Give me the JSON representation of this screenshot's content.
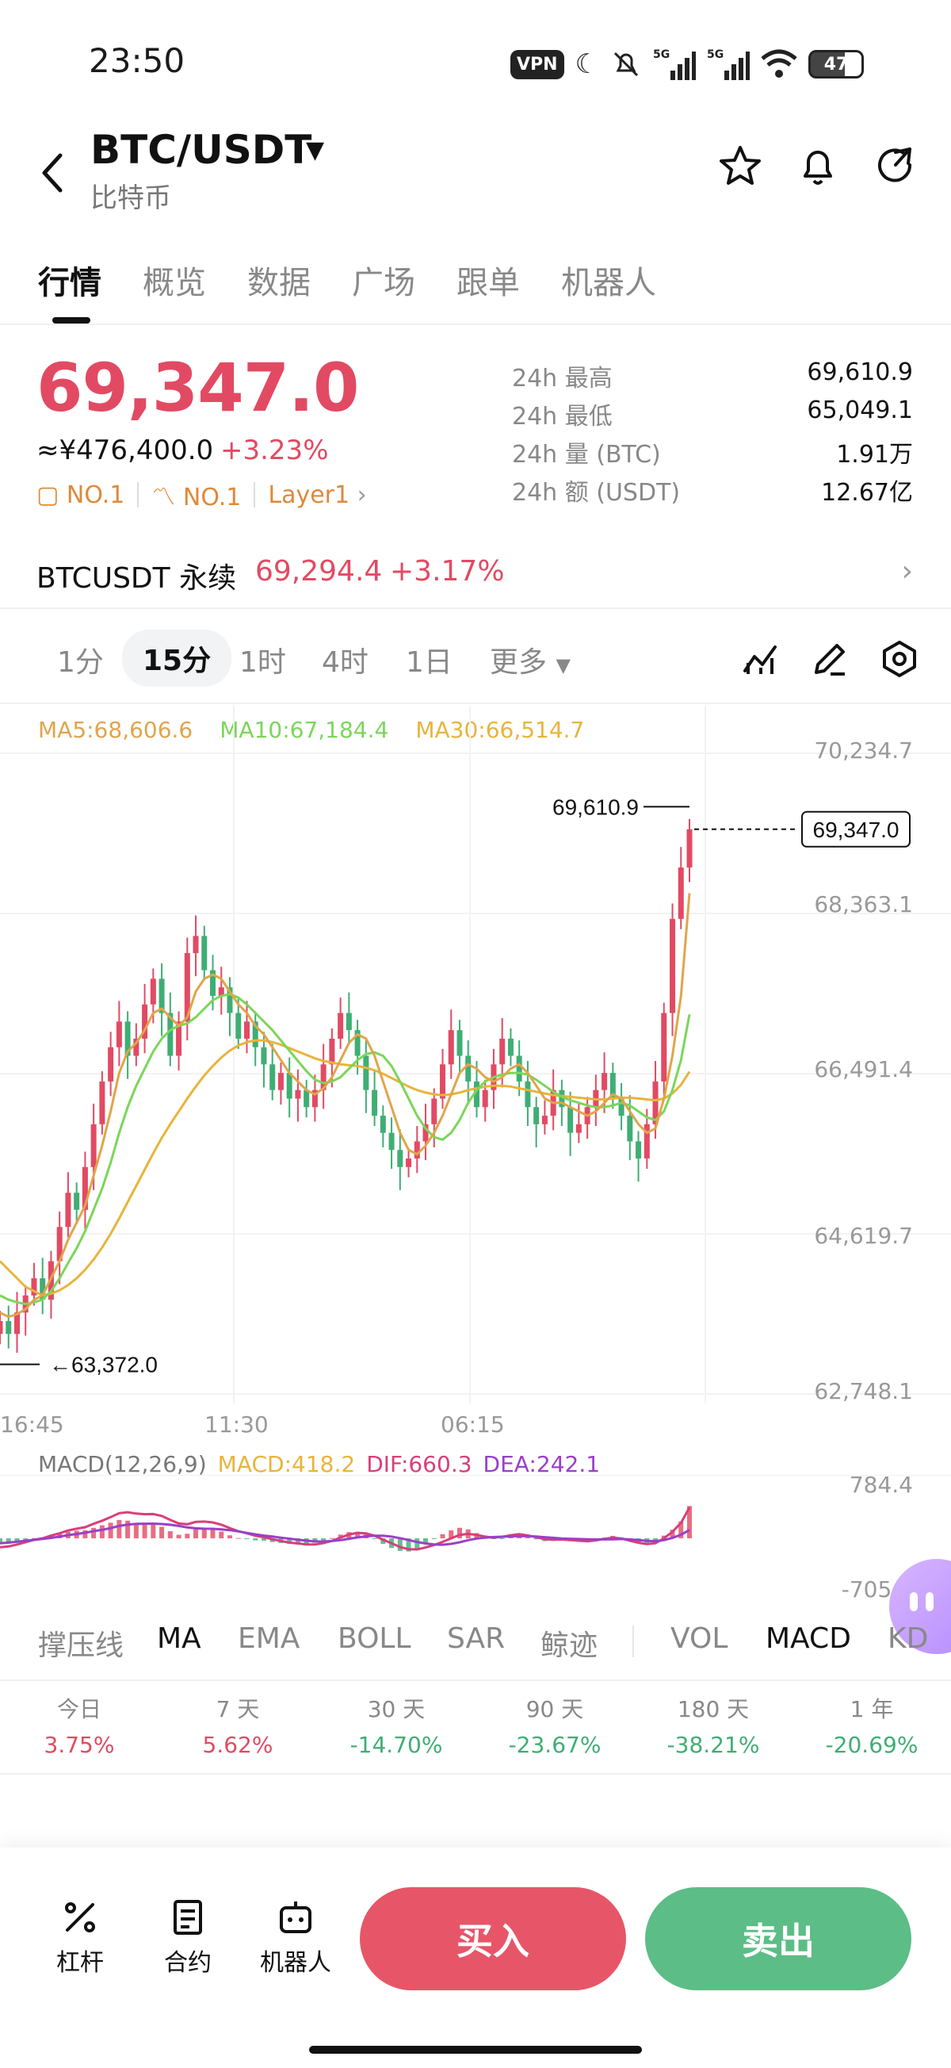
{
  "status_bar": {
    "time": "23:50",
    "vpn": "VPN",
    "battery": "47",
    "icons": [
      "moon-icon",
      "bell-off-icon",
      "5g-signal-icon",
      "5g-signal-icon",
      "wifi-icon"
    ]
  },
  "header": {
    "title": "BTC/USDT",
    "subtitle": "比特币"
  },
  "tabs": [
    "行情",
    "概览",
    "数据",
    "广场",
    "跟单",
    "机器人"
  ],
  "price": {
    "last": "69,347.0",
    "cny": "≈¥476,400.0",
    "change_pct": "+3.23%",
    "badge1": "NO.1",
    "badge2": "NO.1",
    "badge3": "Layer1"
  },
  "stats": [
    {
      "label": "24h  最高",
      "value": "69,610.9"
    },
    {
      "label": "24h  最低",
      "value": "65,049.1"
    },
    {
      "label": "24h  量 (BTC)",
      "value": "1.91万"
    },
    {
      "label": "24h  额 (USDT)",
      "value": "12.67亿"
    }
  ],
  "perp": {
    "name": "BTCUSDT 永续",
    "price": "69,294.4",
    "change_pct": "+3.17%"
  },
  "intervals": [
    "1分",
    "15分",
    "1时",
    "4时",
    "1日",
    "更多"
  ],
  "ma_legend": {
    "ma5": "MA5:68,606.6",
    "ma10": "MA10:67,184.4",
    "ma30": "MA30:66,514.7"
  },
  "chart_data": {
    "type": "candlestick",
    "interval": "15分",
    "y_ticks": [
      "70,234.7",
      "68,363.1",
      "66,491.4",
      "64,619.7",
      "62,748.1"
    ],
    "ylim": [
      62748.1,
      70234.7
    ],
    "x_ticks": [
      "16:45",
      "11:30",
      "06:15"
    ],
    "high_label": "69,610.9",
    "low_label": "63,372.0",
    "last_label": "69,347.0",
    "close_series": [
      63600,
      63450,
      63700,
      63900,
      64100,
      63850,
      64300,
      64700,
      65100,
      64900,
      65400,
      65900,
      66400,
      66800,
      67100,
      66700,
      66900,
      67300,
      67600,
      67200,
      66700,
      67100,
      67900,
      68100,
      67700,
      67400,
      67500,
      67200,
      66900,
      67100,
      66800,
      66600,
      66300,
      66500,
      66200,
      66300,
      66100,
      66300,
      66600,
      66900,
      67200,
      67000,
      66700,
      66300,
      66000,
      65800,
      65600,
      65400,
      65500,
      65700,
      65900,
      66200,
      66600,
      67000,
      66700,
      66400,
      66100,
      66300,
      66600,
      66900,
      66700,
      66400,
      66100,
      65900,
      66000,
      66300,
      66100,
      65800,
      65900,
      66100,
      66300,
      66500,
      66200,
      66000,
      65700,
      65500,
      65900,
      66400,
      67200,
      68300,
      68900,
      69347
    ],
    "ma5_series": [
      63700,
      63650,
      63680,
      63740,
      63850,
      63900,
      64100,
      64300,
      64550,
      64750,
      64950,
      65300,
      65650,
      66050,
      66500,
      66750,
      66850,
      67000,
      67200,
      67250,
      67150,
      67050,
      67150,
      67450,
      67600,
      67650,
      67600,
      67450,
      67300,
      67200,
      67050,
      66950,
      66800,
      66650,
      66500,
      66400,
      66300,
      66250,
      66320,
      66450,
      66650,
      66850,
      66950,
      66900,
      66700,
      66400,
      66100,
      65800,
      65600,
      65550,
      65650,
      65800,
      66000,
      66250,
      66500,
      66600,
      66550,
      66450,
      66400,
      66450,
      66550,
      66600,
      66500,
      66350,
      66200,
      66150,
      66150,
      66100,
      66050,
      66000,
      66050,
      66150,
      66250,
      66200,
      66050,
      65900,
      65800,
      65850,
      66200,
      66700,
      67400,
      68600
    ],
    "ma10_series": [
      63900,
      63850,
      63820,
      63800,
      63820,
      63850,
      63950,
      64100,
      64280,
      64450,
      64650,
      64900,
      65150,
      65450,
      65800,
      66100,
      66350,
      66550,
      66750,
      66900,
      67000,
      67050,
      67080,
      67150,
      67250,
      67350,
      67400,
      67420,
      67380,
      67300,
      67200,
      67100,
      67000,
      66880,
      66760,
      66640,
      66520,
      66420,
      66380,
      66400,
      66450,
      66550,
      66650,
      66720,
      66740,
      66700,
      66580,
      66400,
      66200,
      66000,
      65850,
      65750,
      65720,
      65800,
      65950,
      66150,
      66300,
      66400,
      66450,
      66480,
      66500,
      66500,
      66480,
      66420,
      66350,
      66280,
      66220,
      66180,
      66150,
      66120,
      66100,
      66100,
      66120,
      66150,
      66120,
      66050,
      65980,
      65950,
      66050,
      66300,
      66650,
      67184
    ],
    "ma30_series": [
      64300,
      64200,
      64100,
      64000,
      63950,
      63900,
      63920,
      63960,
      64020,
      64100,
      64200,
      64320,
      64460,
      64620,
      64800,
      64990,
      65180,
      65370,
      65560,
      65740,
      65900,
      66050,
      66200,
      66340,
      66470,
      66580,
      66680,
      66760,
      66820,
      66860,
      66880,
      66880,
      66860,
      66830,
      66790,
      66750,
      66710,
      66670,
      66640,
      66620,
      66600,
      66590,
      66580,
      66560,
      66530,
      66490,
      66440,
      66390,
      66340,
      66300,
      66270,
      66250,
      66240,
      66250,
      66270,
      66300,
      66320,
      66340,
      66350,
      66350,
      66340,
      66320,
      66300,
      66280,
      66260,
      66240,
      66230,
      66220,
      66210,
      66200,
      66190,
      66190,
      66200,
      66210,
      66210,
      66200,
      66190,
      66180,
      66200,
      66260,
      66360,
      66515
    ]
  },
  "macd": {
    "label": "MACD(12,26,9)",
    "macd": "MACD:418.2",
    "dif": "DIF:660.3",
    "dea": "DEA:242.1",
    "y_top": "784.4",
    "y_bottom": "-705.4"
  },
  "indicators": [
    "撑压线",
    "MA",
    "EMA",
    "BOLL",
    "SAR",
    "鲸迹",
    "VOL",
    "MACD",
    "KD"
  ],
  "performance": [
    {
      "label": "今日",
      "value": "3.75%",
      "dir": "up"
    },
    {
      "label": "7 天",
      "value": "5.62%",
      "dir": "up"
    },
    {
      "label": "30 天",
      "value": "-14.70%",
      "dir": "down"
    },
    {
      "label": "90 天",
      "value": "-23.67%",
      "dir": "down"
    },
    {
      "label": "180 天",
      "value": "-38.21%",
      "dir": "down"
    },
    {
      "label": "1 年",
      "value": "-20.69%",
      "dir": "down"
    }
  ],
  "bottom": {
    "leverage": "杠杆",
    "contract": "合约",
    "bot": "机器人",
    "buy": "买入",
    "sell": "卖出"
  },
  "colors": {
    "up": "#e24a63",
    "down": "#3fae74",
    "ma5": "#e0a54a",
    "ma10": "#7bd65a",
    "ma30": "#e8b43c",
    "dif": "#d83f7b",
    "dea": "#9b3fc8"
  }
}
